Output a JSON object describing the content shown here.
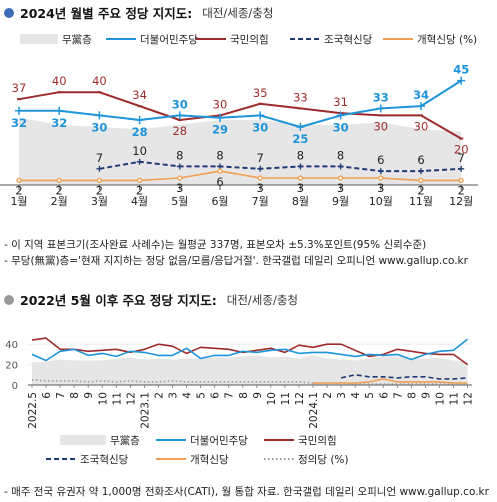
{
  "panel1": {
    "title": "2024년 월별 주요 정당 지지도:",
    "subtitle": "대전/세종/충청"
  },
  "panel2": {
    "title": "2022년 5월 이후 주요 정당 지지도:",
    "subtitle": "대전/세종/충청"
  },
  "notes": {
    "sample": "- 이 지역 표본크기(조사완료 사례수)는 월평균 337명, 표본오차 ±5.3%포인트(95% 신뢰수준)",
    "nonpartisan": "- 무당(無黨)층='현재 지지하는 정당 없음/모름/응답거절'. 한국갤럽 데일리 오피니언 www.gallup.co.kr",
    "source": "- 매주 전국 유권자 약 1,000명 전화조사(CATI), 월 통합 자료. 한국갤럽 데일리 오피니언 www.gallup.co.kr"
  },
  "chart_data": [
    {
      "type": "line",
      "x": [
        "1월",
        "2월",
        "3월",
        "4월",
        "5월",
        "6월",
        "7월",
        "8월",
        "9월",
        "10월",
        "11월",
        "12월"
      ],
      "legend": "top",
      "series": [
        {
          "name": "무黨층",
          "kind": "area",
          "color": "#e6e6e6",
          "values": [
            29,
            26,
            25,
            24,
            26,
            28,
            28,
            26,
            26,
            27,
            24,
            23
          ]
        },
        {
          "name": "더불어민주당",
          "color": "#1e94da",
          "values": [
            32,
            32,
            30,
            28,
            30,
            29,
            30,
            25,
            30,
            33,
            34,
            45
          ]
        },
        {
          "name": "국민의힘",
          "color": "#9e2b2b",
          "values": [
            37,
            40,
            40,
            34,
            28,
            30,
            35,
            33,
            31,
            30,
            30,
            20
          ]
        },
        {
          "name": "조국혁신당",
          "color": "#1f3b73",
          "dashed": true,
          "values": [
            null,
            null,
            7,
            10,
            8,
            8,
            7,
            8,
            8,
            6,
            6,
            7
          ]
        },
        {
          "name": "개혁신당 (%)",
          "color": "#f0a050",
          "values": [
            2,
            2,
            2,
            2,
            3,
            6,
            3,
            3,
            3,
            3,
            2,
            2
          ]
        }
      ]
    },
    {
      "type": "line",
      "x": [
        "2022.5",
        "6",
        "7",
        "8",
        "9",
        "10",
        "11",
        "12",
        "2023.1",
        "2",
        "3",
        "4",
        "5",
        "6",
        "7",
        "8",
        "9",
        "10",
        "11",
        "12",
        "2024.1",
        "2",
        "3",
        "4",
        "5",
        "6",
        "7",
        "8",
        "9",
        "10",
        "11",
        "12"
      ],
      "y_ticks": [
        0,
        20,
        40
      ],
      "ylim": [
        0,
        50
      ],
      "legend": "bottom",
      "series": [
        {
          "name": "무黨층",
          "kind": "area",
          "color": "#e6e6e6",
          "values": [
            22,
            23,
            25,
            24,
            24,
            24,
            26,
            27,
            25,
            26,
            25,
            26,
            26,
            27,
            27,
            28,
            29,
            27,
            28,
            26,
            29,
            26,
            25,
            24,
            26,
            28,
            28,
            26,
            26,
            27,
            24,
            23
          ]
        },
        {
          "name": "더불어민주당",
          "color": "#1e94da",
          "values": [
            30,
            24,
            33,
            35,
            29,
            31,
            28,
            33,
            32,
            29,
            29,
            36,
            26,
            29,
            29,
            33,
            32,
            34,
            35,
            31,
            32,
            32,
            30,
            28,
            30,
            29,
            30,
            25,
            30,
            33,
            34,
            45
          ]
        },
        {
          "name": "국민의힘",
          "color": "#9e2b2b",
          "values": [
            44,
            46,
            35,
            35,
            33,
            34,
            35,
            32,
            35,
            40,
            38,
            31,
            37,
            36,
            35,
            32,
            34,
            36,
            32,
            39,
            37,
            40,
            40,
            34,
            28,
            30,
            35,
            33,
            31,
            30,
            30,
            20
          ]
        },
        {
          "name": "조국혁신당",
          "color": "#1f3b73",
          "dashed": true,
          "values": [
            null,
            null,
            null,
            null,
            null,
            null,
            null,
            null,
            null,
            null,
            null,
            null,
            null,
            null,
            null,
            null,
            null,
            null,
            null,
            null,
            null,
            null,
            7,
            10,
            8,
            8,
            7,
            8,
            8,
            6,
            6,
            7
          ]
        },
        {
          "name": "개혁신당",
          "color": "#f0a050",
          "values": [
            null,
            null,
            null,
            null,
            null,
            null,
            null,
            null,
            null,
            null,
            null,
            null,
            null,
            null,
            null,
            null,
            null,
            null,
            null,
            null,
            2,
            2,
            2,
            2,
            3,
            6,
            3,
            3,
            3,
            3,
            2,
            2
          ]
        },
        {
          "name": "정의당 (%)",
          "color": "#9a9a9a",
          "dotted": true,
          "values": [
            5,
            4,
            4,
            4,
            3,
            4,
            3,
            4,
            3,
            3,
            4,
            3,
            3,
            3,
            3,
            3,
            3,
            3,
            3,
            3,
            2,
            2,
            2,
            1,
            1,
            1,
            1,
            1,
            1,
            1,
            1,
            1
          ]
        }
      ]
    }
  ]
}
